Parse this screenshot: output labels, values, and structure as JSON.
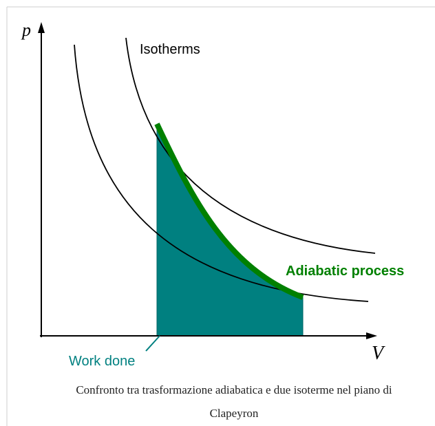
{
  "diagram": {
    "axis_y_label": "p",
    "axis_x_label": "V",
    "isotherms_label": "Isotherms",
    "adiabatic_label": "Adiabatic process",
    "work_label": "Work done"
  },
  "caption": [
    "Confronto tra trasformazione adiabatica e due isoterme nel piano di",
    "Clapeyron"
  ]
}
